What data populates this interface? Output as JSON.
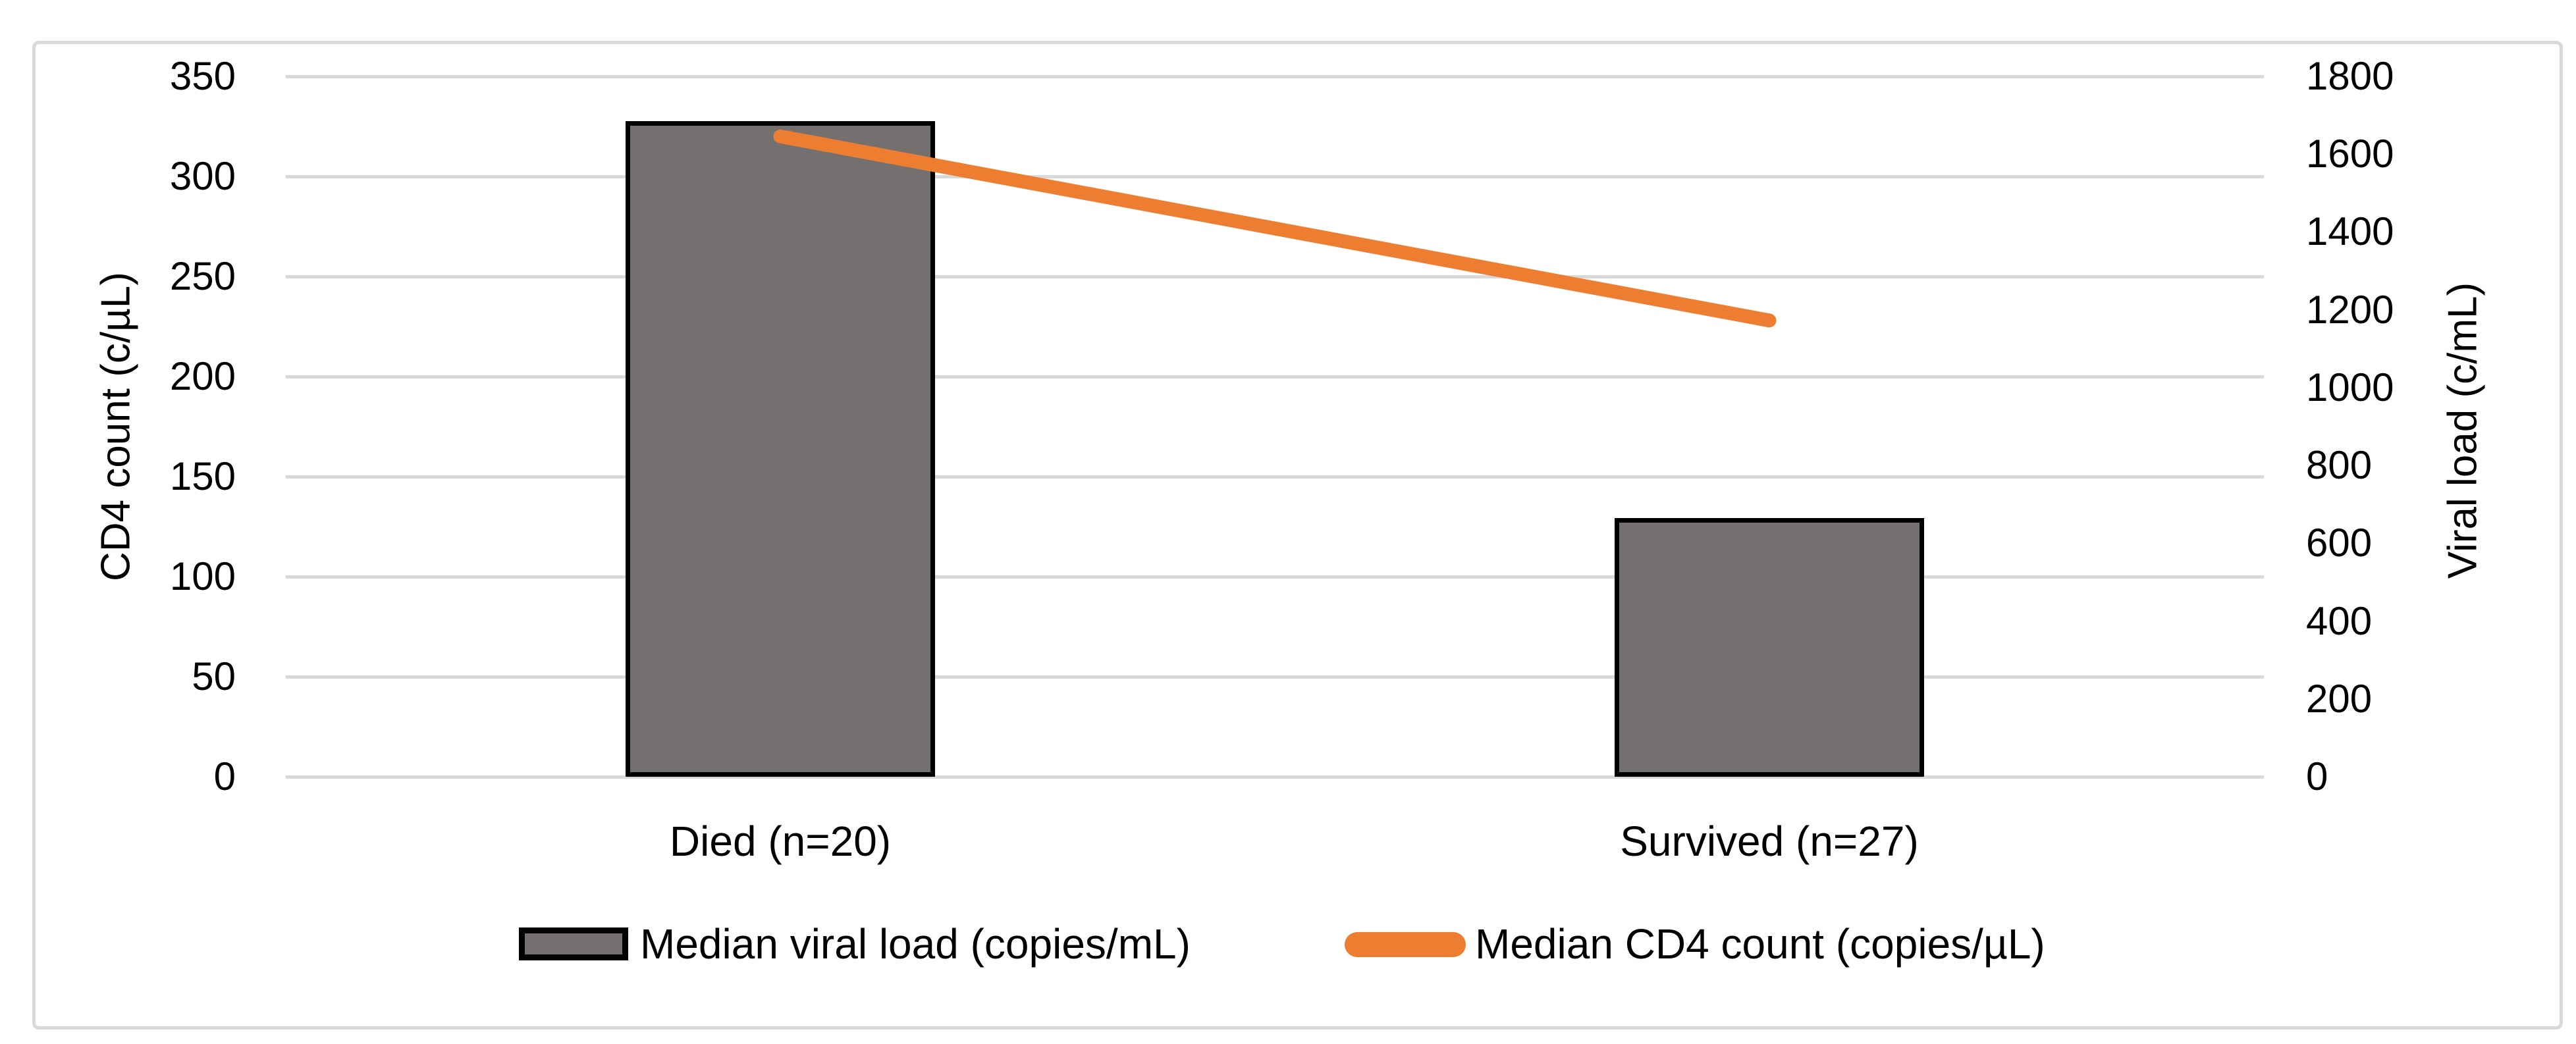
{
  "chart_data": {
    "type": "combo",
    "categories": [
      "Died (n=20)",
      "Survived (n=27)"
    ],
    "series": [
      {
        "name": "Median viral load (copies/mL)",
        "type": "bar",
        "axis": "right",
        "values": [
          1685,
          665
        ],
        "color": "#747070",
        "border_color": "#000000"
      },
      {
        "name": "Median CD4 count (copies/µL)",
        "type": "line",
        "axis": "left",
        "values": [
          320,
          228
        ],
        "color": "#ED7D31"
      }
    ],
    "left_axis": {
      "title": "CD4 count (c/µL)",
      "min": 0,
      "max": 350,
      "step": 50
    },
    "right_axis": {
      "title": "Viral load (c/mL)",
      "min": 0,
      "max": 1800,
      "step": 200
    },
    "title": "",
    "grid": true,
    "gridline_color": "#d9d9d9",
    "frame_color": "#d9d9d9",
    "legend_position": "bottom"
  }
}
